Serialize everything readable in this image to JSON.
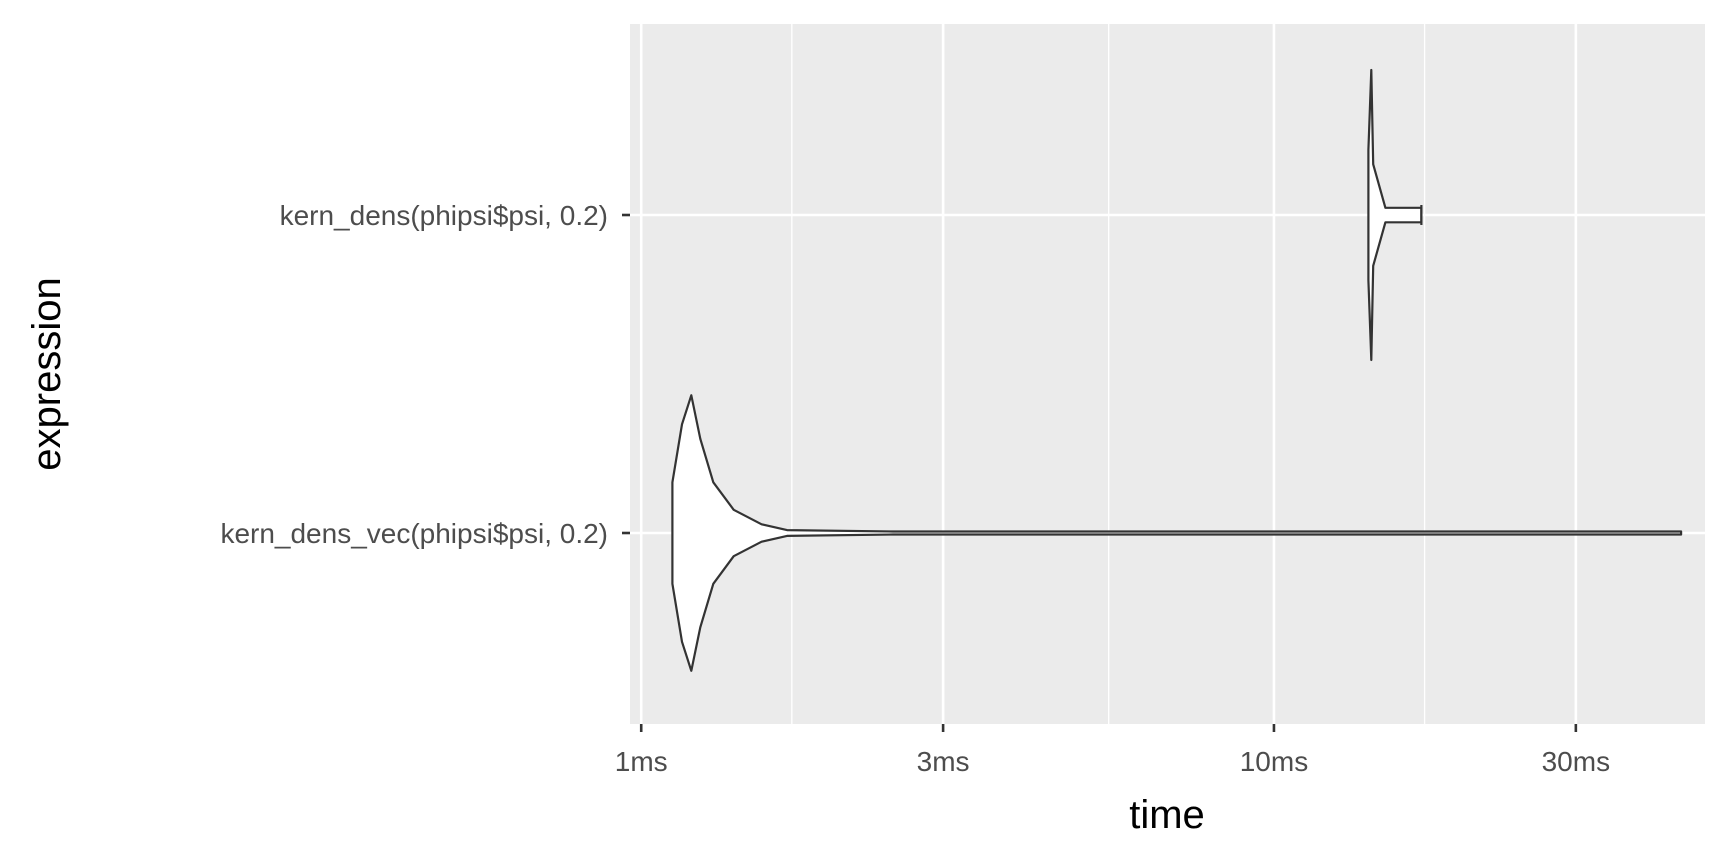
{
  "chart_data": {
    "type": "violin",
    "xlabel": "time",
    "ylabel": "expression",
    "x_scale": "log10",
    "x_unit": "ms",
    "xlim": [
      0.96,
      48
    ],
    "x_ticks": [
      {
        "value": 1,
        "label": "1ms"
      },
      {
        "value": 3,
        "label": "3ms"
      },
      {
        "value": 10,
        "label": "10ms"
      },
      {
        "value": 30,
        "label": "30ms"
      }
    ],
    "x_minor_ticks": [
      1.73,
      5.48,
      17.3
    ],
    "categories": [
      "kern_dens_vec(phipsi$psi, 0.2)",
      "kern_dens(phipsi$psi, 0.2)"
    ],
    "series": [
      {
        "category": "kern_dens(phipsi$psi, 0.2)",
        "min": 14.1,
        "max": 17.1,
        "profile": [
          {
            "t": 14.1,
            "w": 0.45
          },
          {
            "t": 14.25,
            "w": 1.0
          },
          {
            "t": 14.35,
            "w": 0.35
          },
          {
            "t": 15.0,
            "w": 0.05
          },
          {
            "t": 17.1,
            "w": 0.05
          }
        ]
      },
      {
        "category": "kern_dens_vec(phipsi$psi, 0.2)",
        "min": 1.12,
        "max": 44,
        "profile": [
          {
            "t": 1.12,
            "w": 0.35
          },
          {
            "t": 1.16,
            "w": 0.75
          },
          {
            "t": 1.2,
            "w": 0.95
          },
          {
            "t": 1.24,
            "w": 0.65
          },
          {
            "t": 1.3,
            "w": 0.35
          },
          {
            "t": 1.4,
            "w": 0.16
          },
          {
            "t": 1.55,
            "w": 0.06
          },
          {
            "t": 1.7,
            "w": 0.02
          },
          {
            "t": 2.5,
            "w": 0.01
          },
          {
            "t": 44,
            "w": 0.01
          }
        ]
      }
    ],
    "colors": {
      "panel_background": "#ebebeb",
      "grid_major": "#ffffff",
      "violin_stroke": "#333333",
      "violin_fill": "#ffffff",
      "tick_label": "#4d4d4d",
      "axis_title": "#000000"
    },
    "grid": true,
    "legend": "none"
  }
}
